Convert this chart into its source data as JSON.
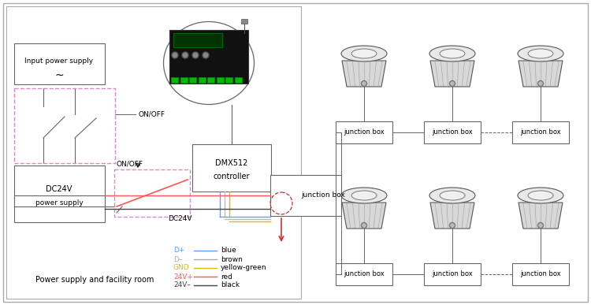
{
  "bg_color": "#ffffff",
  "title_text": "Power supply and facility room",
  "legend_items": [
    {
      "label": "D+",
      "label_color": "#6699ff",
      "line_color": "#6699ff",
      "desc": "blue"
    },
    {
      "label": "D–",
      "label_color": "#aaaaaa",
      "line_color": "#aaaaaa",
      "desc": "brown"
    },
    {
      "label": "GND",
      "label_color": "#ddbb00",
      "line_color": "#ddbb00",
      "desc": "yellow-green"
    },
    {
      "label": "24V+",
      "label_color": "#ff5555",
      "line_color": "#ff5555",
      "desc": "red"
    },
    {
      "label": "24V–",
      "label_color": "#444444",
      "line_color": "#444444",
      "desc": "black"
    }
  ],
  "wire_blue": "#7799ee",
  "wire_gray": "#bbbbbb",
  "wire_yellow": "#ddbb00",
  "wire_red": "#ff5555",
  "wire_black": "#444444",
  "line_color": "#666666",
  "pink_color": "#dd88cc",
  "red_dashed": "#cc3333"
}
